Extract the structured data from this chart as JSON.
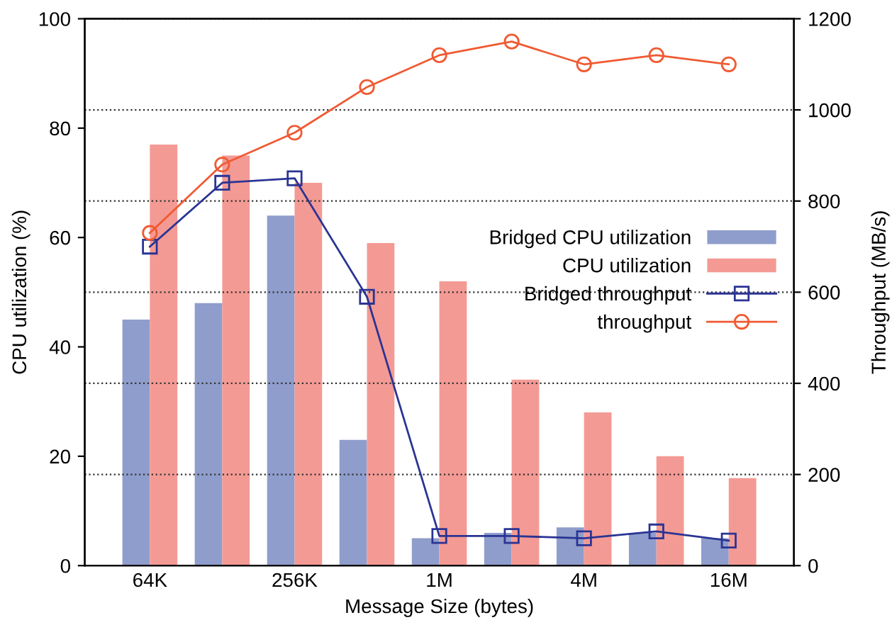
{
  "chart_data": {
    "type": "bar",
    "xlabel": "Message Size (bytes)",
    "ylabel": "CPU utilization (%)",
    "y2label": "Throughput (MB/s)",
    "categories": [
      "64K",
      null,
      "256K",
      null,
      "1M",
      null,
      "4M",
      null,
      "16M"
    ],
    "series": [
      {
        "name": "Bridged CPU utilization",
        "color": "#8f9dcc",
        "values": [
          45,
          48,
          64,
          23,
          5,
          6,
          7,
          6,
          5
        ]
      },
      {
        "name": "CPU utilization",
        "color": "#f49a94",
        "values": [
          77,
          75,
          70,
          59,
          52,
          34,
          28,
          20,
          16
        ]
      },
      {
        "name": "Bridged throughput",
        "type": "line",
        "axis": "y2",
        "marker": "square",
        "color": "#2a3494",
        "values": [
          700,
          840,
          850,
          590,
          65,
          65,
          60,
          75,
          55
        ]
      },
      {
        "name": "throughput",
        "type": "line",
        "axis": "y2",
        "marker": "circle",
        "color": "#f05a32",
        "values": [
          730,
          880,
          950,
          1050,
          1120,
          1150,
          1100,
          1120,
          1100
        ]
      }
    ],
    "ylim": [
      0,
      100
    ],
    "yticks": [
      0,
      20,
      40,
      60,
      80,
      100
    ],
    "y2lim": [
      0,
      1200
    ],
    "y2ticks": [
      0,
      200,
      400,
      600,
      800,
      1000,
      1200
    ],
    "grid": "y2",
    "legend": "right",
    "line_style": "solid"
  }
}
